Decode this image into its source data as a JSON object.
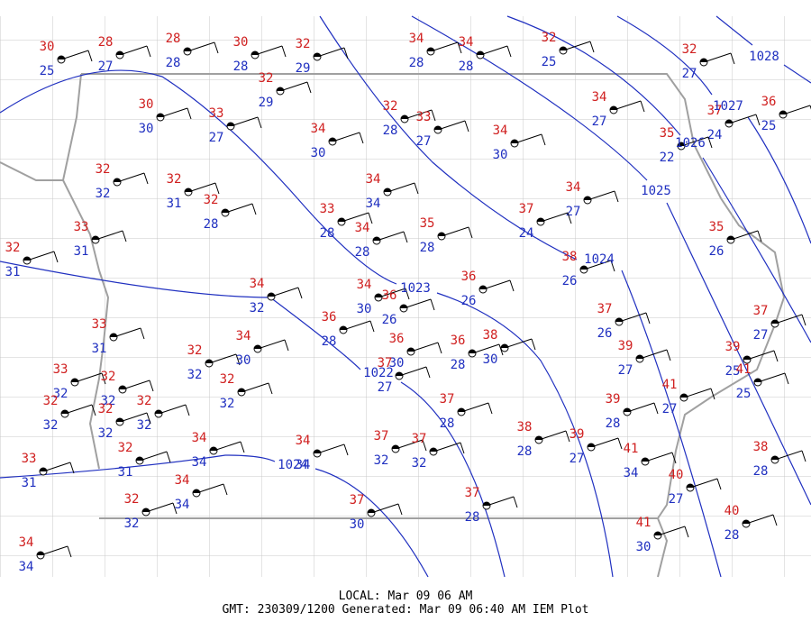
{
  "stations": [
    {
      "temp": 30,
      "dew": 25
    },
    {
      "temp": 28,
      "dew": 27
    },
    {
      "temp": 28,
      "dew": 28
    },
    {
      "temp": 30,
      "dew": 28
    },
    {
      "temp": 32,
      "dew": 29
    },
    {
      "temp": 34,
      "dew": 28
    },
    {
      "temp": 34,
      "dew": 28
    },
    {
      "temp": 32,
      "dew": 25
    },
    {
      "temp": 32,
      "dew": 27
    },
    {
      "temp": 36,
      "dew": 25
    },
    {
      "temp": 32,
      "dew": 29
    },
    {
      "temp": 30,
      "dew": 30
    },
    {
      "temp": 33,
      "dew": 27
    },
    {
      "temp": 32,
      "dew": 28
    },
    {
      "temp": 33,
      "dew": 27
    },
    {
      "temp": 34,
      "dew": 30
    },
    {
      "temp": 34,
      "dew": 30
    },
    {
      "temp": 34,
      "dew": 27
    },
    {
      "temp": 37,
      "dew": 24
    },
    {
      "temp": 35,
      "dew": 22
    },
    {
      "temp": 32,
      "dew": 32
    },
    {
      "temp": 32,
      "dew": 31
    },
    {
      "temp": 32,
      "dew": 28
    },
    {
      "temp": 34,
      "dew": 34
    },
    {
      "temp": 34,
      "dew": 27
    },
    {
      "temp": 33,
      "dew": 28
    },
    {
      "temp": 34,
      "dew": 28
    },
    {
      "temp": 35,
      "dew": 28
    },
    {
      "temp": 37,
      "dew": 24
    },
    {
      "temp": 32,
      "dew": 31
    },
    {
      "temp": 33,
      "dew": 31
    },
    {
      "temp": 35,
      "dew": 26
    },
    {
      "temp": 38,
      "dew": 26
    },
    {
      "temp": 34,
      "dew": 32
    },
    {
      "temp": 34,
      "dew": 30
    },
    {
      "temp": 36,
      "dew": 26
    },
    {
      "temp": 36,
      "dew": 26
    },
    {
      "temp": 36,
      "dew": 28
    },
    {
      "temp": 37,
      "dew": 26
    },
    {
      "temp": 37,
      "dew": 27
    },
    {
      "temp": 33,
      "dew": 31
    },
    {
      "temp": 32,
      "dew": 32
    },
    {
      "temp": 34,
      "dew": 30
    },
    {
      "temp": 36,
      "dew": 30
    },
    {
      "temp": 36,
      "dew": 28
    },
    {
      "temp": 38,
      "dew": 30
    },
    {
      "temp": 39,
      "dew": 27
    },
    {
      "temp": 39,
      "dew": 25
    },
    {
      "temp": 41,
      "dew": 25
    },
    {
      "temp": 37,
      "dew": 27
    },
    {
      "temp": 33,
      "dew": 32
    },
    {
      "temp": 32,
      "dew": 32
    },
    {
      "temp": 32,
      "dew": 32
    },
    {
      "temp": 32,
      "dew": 32
    },
    {
      "temp": 32,
      "dew": 32
    },
    {
      "temp": 37,
      "dew": 28
    },
    {
      "temp": 39,
      "dew": 28
    },
    {
      "temp": 41,
      "dew": 27
    },
    {
      "temp": 32,
      "dew": 32
    },
    {
      "temp": 33,
      "dew": 31
    },
    {
      "temp": 32,
      "dew": 31
    },
    {
      "temp": 34,
      "dew": 34
    },
    {
      "temp": 34,
      "dew": 34
    },
    {
      "temp": 37,
      "dew": 32
    },
    {
      "temp": 37,
      "dew": 32
    },
    {
      "temp": 38,
      "dew": 28
    },
    {
      "temp": 39,
      "dew": 27
    },
    {
      "temp": 41,
      "dew": 34
    },
    {
      "temp": 40,
      "dew": 27
    },
    {
      "temp": 38,
      "dew": 28
    },
    {
      "temp": 34,
      "dew": 34
    },
    {
      "temp": 32,
      "dew": 32
    },
    {
      "temp": 37,
      "dew": 30
    },
    {
      "temp": 37,
      "dew": 28
    },
    {
      "temp": 40,
      "dew": 28
    },
    {
      "temp": 41,
      "dew": 30
    },
    {
      "temp": 34,
      "dew": 34
    }
  ],
  "isobars": [
    "1028",
    "1027",
    "1026",
    "1025",
    "1024",
    "1023",
    "1022",
    "1024"
  ],
  "footer": {
    "local": "LOCAL: Mar 09 06 AM",
    "gmt": "GMT: 230309/1200 Generated: Mar 09 06:40 AM IEM Plot"
  }
}
